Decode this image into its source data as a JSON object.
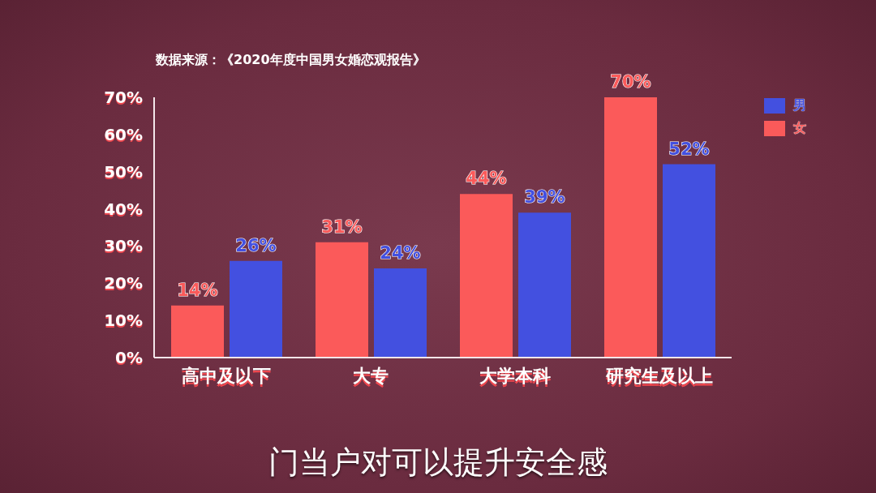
{
  "chart_data": {
    "type": "bar",
    "categories": [
      "高中及以下",
      "大专",
      "大学本科",
      "研究生及以上"
    ],
    "series": [
      {
        "name": "女",
        "color": "#fb5a5a",
        "values": [
          14,
          31,
          44,
          70
        ],
        "value_labels": [
          "14%",
          "31%",
          "44%",
          "70%"
        ]
      },
      {
        "name": "男",
        "color": "#4350e0",
        "values": [
          26,
          24,
          39,
          52
        ],
        "value_labels": [
          "26%",
          "24%",
          "39%",
          "52%"
        ]
      }
    ],
    "ylim": [
      0,
      70
    ],
    "yticks": [
      {
        "value": 0,
        "label": "0%"
      },
      {
        "value": 10,
        "label": "10%"
      },
      {
        "value": 20,
        "label": "20%"
      },
      {
        "value": 30,
        "label": "30%"
      },
      {
        "value": 40,
        "label": "40%"
      },
      {
        "value": 50,
        "label": "50%"
      },
      {
        "value": 60,
        "label": "60%"
      },
      {
        "value": 70,
        "label": "70%"
      }
    ],
    "legend": "top right",
    "grid": false,
    "annotations": [
      "数据来源：《2020年度中国男女婚恋观报告》",
      "门当户对可以提升安全感"
    ]
  }
}
